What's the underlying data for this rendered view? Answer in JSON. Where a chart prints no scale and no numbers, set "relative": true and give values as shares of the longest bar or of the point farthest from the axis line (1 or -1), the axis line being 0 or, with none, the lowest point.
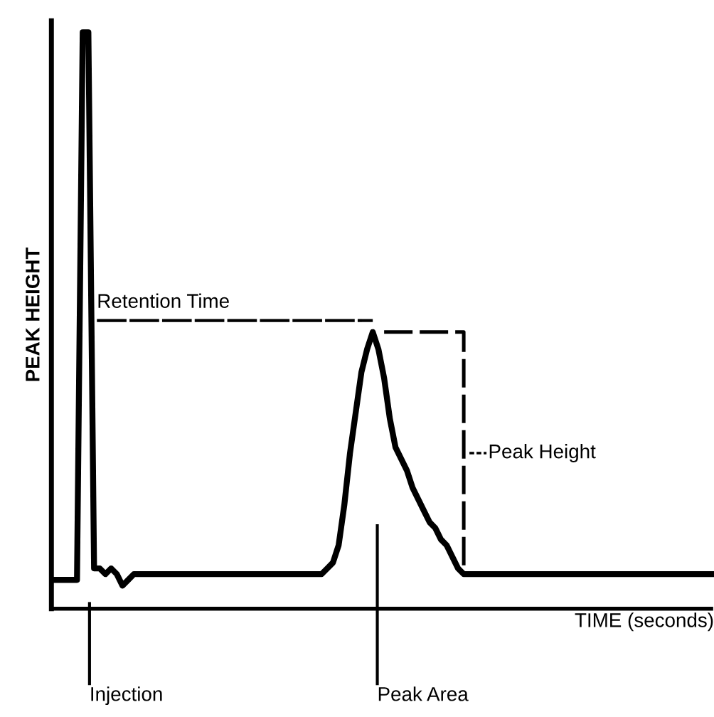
{
  "chart_data": {
    "type": "line",
    "relative": true,
    "xlabel": "TIME (seconds)",
    "ylabel": "PEAK HEIGHT",
    "categories": [
      null,
      null,
      null,
      null,
      null,
      null,
      null,
      null,
      null,
      null,
      null,
      null,
      null,
      null,
      null,
      null,
      null,
      null,
      null,
      null,
      null,
      null,
      null,
      null,
      null,
      null,
      null,
      null,
      null,
      null,
      null,
      null,
      null,
      null,
      null,
      null,
      null,
      null,
      null,
      null,
      null,
      null,
      null,
      null,
      null,
      null,
      null,
      null,
      null,
      null,
      null,
      null,
      null,
      null,
      null,
      null,
      null,
      null,
      null,
      null,
      null,
      null,
      null,
      null,
      null,
      null,
      null,
      null,
      null,
      null,
      null,
      null,
      null,
      null,
      null,
      null,
      null,
      null,
      null,
      null,
      null,
      null,
      null,
      null,
      null,
      null,
      null,
      null,
      null,
      null,
      null,
      null,
      null,
      null,
      null,
      null,
      null,
      null,
      null,
      null,
      null,
      null,
      null,
      null,
      null,
      null,
      null,
      null,
      null,
      null,
      null,
      null,
      null,
      null,
      null,
      null,
      null
    ],
    "series": [
      {
        "color": "#000000",
        "values": [
          0.05,
          0.05,
          0.05,
          0.05,
          0.05,
          1.0,
          1.0,
          0.07,
          0.07,
          0.06,
          0.07,
          0.06,
          0.04,
          0.05,
          0.06,
          0.06,
          0.06,
          0.06,
          0.06,
          0.06,
          0.06,
          0.06,
          0.06,
          0.06,
          0.06,
          0.06,
          0.06,
          0.06,
          0.06,
          0.06,
          0.06,
          0.06,
          0.06,
          0.06,
          0.06,
          0.06,
          0.06,
          0.06,
          0.06,
          0.06,
          0.06,
          0.06,
          0.06,
          0.06,
          0.06,
          0.06,
          0.06,
          0.06,
          0.07,
          0.08,
          0.11,
          0.18,
          0.27,
          0.34,
          0.41,
          0.45,
          0.48,
          0.45,
          0.4,
          0.33,
          0.28,
          0.26,
          0.24,
          0.21,
          0.19,
          0.17,
          0.15,
          0.14,
          0.12,
          0.11,
          0.09,
          0.07,
          0.06,
          0.06,
          0.06,
          0.06,
          0.06,
          0.06,
          0.06,
          0.06,
          0.06,
          0.06,
          0.06,
          0.06,
          0.06,
          0.06,
          0.06,
          0.06,
          0.06,
          0.06,
          0.06,
          0.06,
          0.06,
          0.06,
          0.06,
          0.06,
          0.06,
          0.06,
          0.06,
          0.06,
          0.06,
          0.06,
          0.06,
          0.06,
          0.06,
          0.06,
          0.06,
          0.06,
          0.06,
          0.06,
          0.06,
          0.06,
          0.06,
          0.06,
          0.06,
          0.06,
          0.06
        ]
      }
    ],
    "annotations": [
      "Retention Time",
      "Peak Height",
      "Injection",
      "Peak Area"
    ]
  }
}
